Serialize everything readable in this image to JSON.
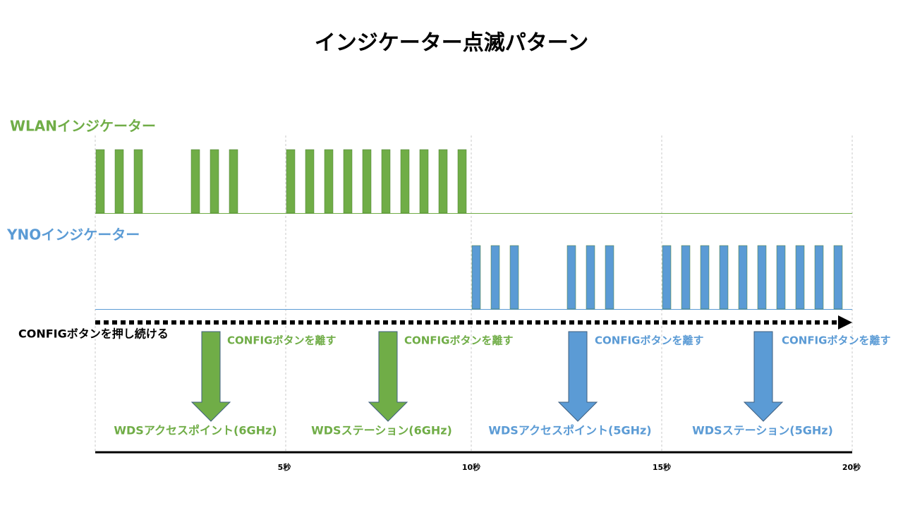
{
  "title": "インジケーター点滅パターン",
  "indicators": [
    {
      "label": "WLANインジケーター"
    },
    {
      "label": "YNOインジケーター"
    }
  ],
  "hold_label": "CONFIGボタンを押し続ける",
  "releases": [
    "CONFIGボタンを離す",
    "CONFIGボタンを離す",
    "CONFIGボタンを離す",
    "CONFIGボタンを離す"
  ],
  "modes": [
    "WDSアクセスポイント(6GHz)",
    "WDSステーション(6GHz)",
    "WDSアクセスポイント(5GHz)",
    "WDSステーション(5GHz)"
  ],
  "time_ticks": [
    "5秒",
    "10秒",
    "15秒",
    "20秒"
  ]
}
